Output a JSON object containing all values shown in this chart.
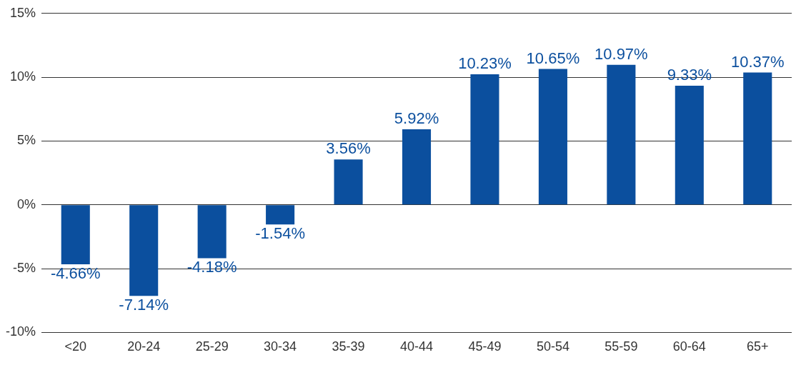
{
  "chart_data": {
    "type": "bar",
    "categories": [
      "<20",
      "20-24",
      "25-29",
      "30-34",
      "35-39",
      "40-44",
      "45-49",
      "50-54",
      "55-59",
      "60-64",
      "65+"
    ],
    "values": [
      -4.66,
      -7.14,
      -4.18,
      -1.54,
      3.56,
      5.92,
      10.23,
      10.65,
      10.97,
      9.33,
      10.37
    ],
    "value_labels": [
      "-4.66%",
      "-7.14%",
      "-4.18%",
      "-1.54%",
      "3.56%",
      "5.92%",
      "10.23%",
      "10.65%",
      "10.97%",
      "9.33%",
      "10.37%"
    ],
    "color": "#0b4f9e",
    "ylim": [
      -10,
      15
    ],
    "yticks": [
      {
        "value": -10,
        "label": "-10%"
      },
      {
        "value": -5,
        "label": "-5%"
      },
      {
        "value": 0,
        "label": "0%"
      },
      {
        "value": 5,
        "label": "5%"
      },
      {
        "value": 10,
        "label": "10%"
      },
      {
        "value": 15,
        "label": "15%"
      }
    ],
    "grid": "y"
  }
}
